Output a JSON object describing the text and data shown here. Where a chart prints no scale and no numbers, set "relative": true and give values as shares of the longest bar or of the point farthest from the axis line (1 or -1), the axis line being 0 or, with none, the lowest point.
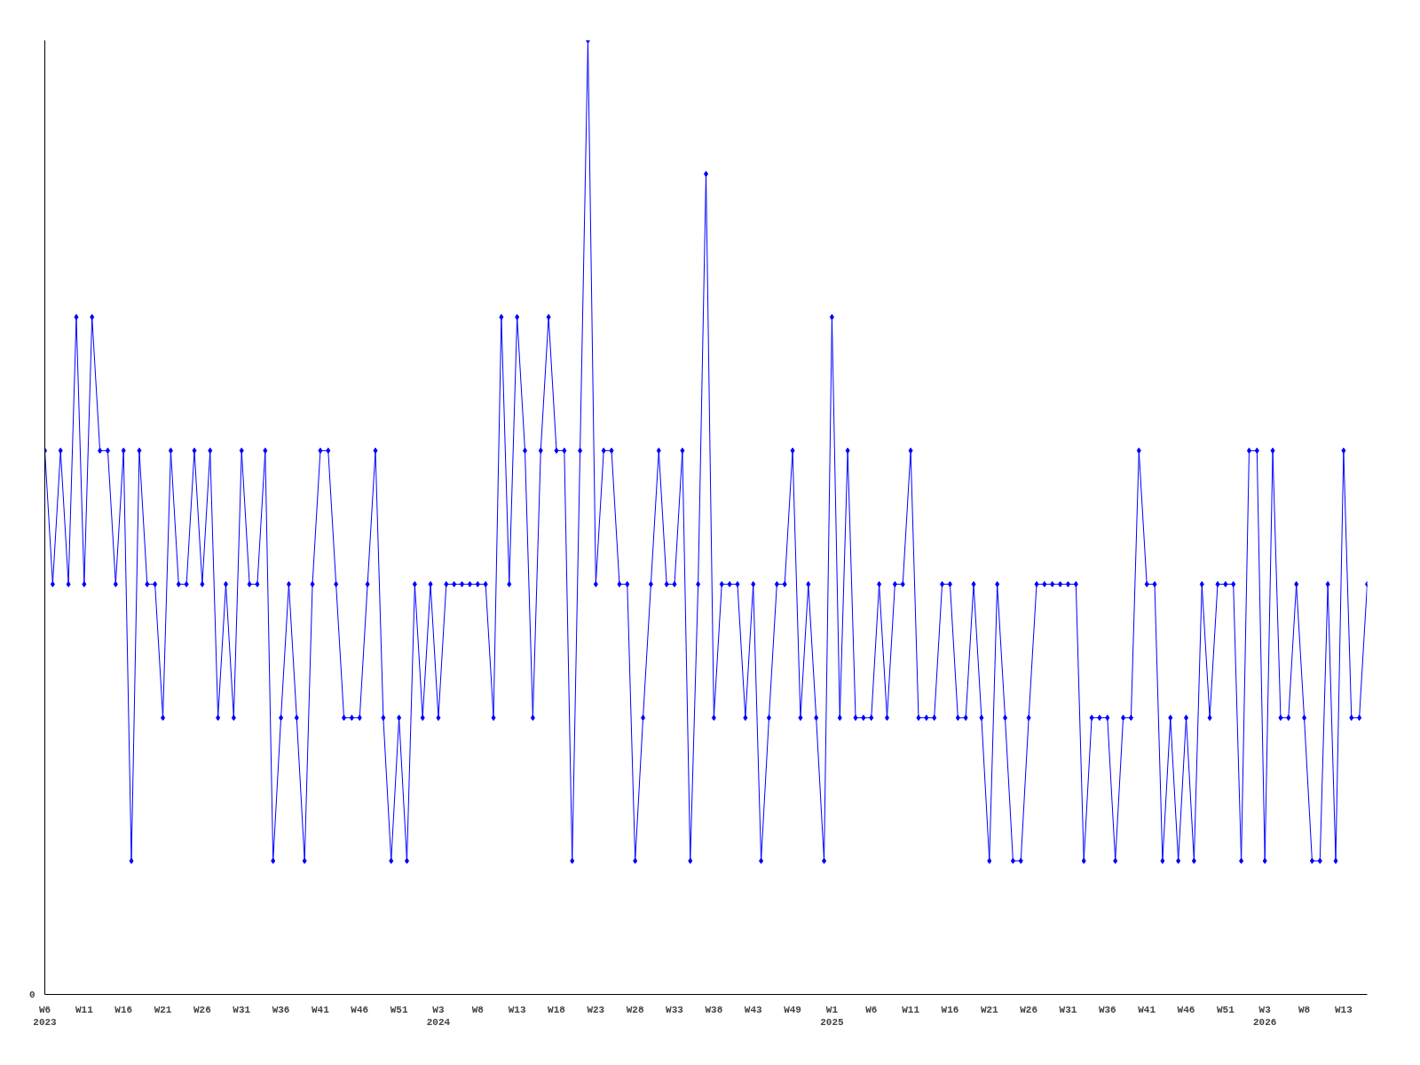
{
  "chart_data": {
    "type": "line",
    "relative": true,
    "marker": "diamond",
    "line_style": "solid",
    "grid": false,
    "annotations": [
      "0"
    ],
    "categories": [
      "W6\n2023",
      null,
      null,
      null,
      null,
      "W11",
      null,
      null,
      null,
      null,
      "W16",
      null,
      null,
      null,
      null,
      "W21",
      null,
      null,
      null,
      null,
      "W26",
      null,
      null,
      null,
      null,
      "W31",
      null,
      null,
      null,
      null,
      "W36",
      null,
      null,
      null,
      null,
      "W41",
      null,
      null,
      null,
      null,
      "W46",
      null,
      null,
      null,
      null,
      "W51",
      null,
      null,
      null,
      null,
      "W3\n2024",
      null,
      null,
      null,
      null,
      "W8",
      null,
      null,
      null,
      null,
      "W13",
      null,
      null,
      null,
      null,
      "W18",
      null,
      null,
      null,
      null,
      "W23",
      null,
      null,
      null,
      null,
      "W28",
      null,
      null,
      null,
      null,
      "W33",
      null,
      null,
      null,
      null,
      "W38",
      null,
      null,
      null,
      null,
      "W43",
      null,
      null,
      null,
      null,
      "W49",
      null,
      null,
      null,
      null,
      "W1\n2025",
      null,
      null,
      null,
      null,
      "W6",
      null,
      null,
      null,
      null,
      "W11",
      null,
      null,
      null,
      null,
      "W16",
      null,
      null,
      null,
      null,
      "W21",
      null,
      null,
      null,
      null,
      "W26",
      null,
      null,
      null,
      null,
      "W31",
      null,
      null,
      null,
      null,
      "W36",
      null,
      null,
      null,
      null,
      "W41",
      null,
      null,
      null,
      null,
      "W46",
      null,
      null,
      null,
      null,
      "W51",
      null,
      null,
      null,
      null,
      "W3\n2026",
      null,
      null,
      null,
      null,
      "W8",
      null,
      null,
      null,
      null,
      "W13",
      null,
      null,
      null
    ],
    "series": [
      {
        "color": "#0000ff",
        "values": [
          0.57,
          0.43,
          0.57,
          0.43,
          0.71,
          0.43,
          0.71,
          0.57,
          0.57,
          0.43,
          0.57,
          0.14,
          0.57,
          0.43,
          0.43,
          0.29,
          0.57,
          0.43,
          0.43,
          0.57,
          0.43,
          0.57,
          0.29,
          0.43,
          0.29,
          0.57,
          0.43,
          0.43,
          0.57,
          0.14,
          0.29,
          0.43,
          0.29,
          0.14,
          0.43,
          0.57,
          0.57,
          0.43,
          0.29,
          0.29,
          0.29,
          0.43,
          0.57,
          0.29,
          0.14,
          0.29,
          0.14,
          0.43,
          0.29,
          0.43,
          0.29,
          0.43,
          0.43,
          0.43,
          0.43,
          0.43,
          0.43,
          0.29,
          0.71,
          0.43,
          0.71,
          0.57,
          0.29,
          0.57,
          0.71,
          0.57,
          0.57,
          0.14,
          0.57,
          1,
          0.43,
          0.57,
          0.57,
          0.43,
          0.43,
          0.14,
          0.29,
          0.43,
          0.57,
          0.43,
          0.43,
          0.57,
          0.14,
          0.43,
          0.86,
          0.29,
          0.43,
          0.43,
          0.43,
          0.29,
          0.43,
          0.14,
          0.29,
          0.43,
          0.43,
          0.57,
          0.29,
          0.43,
          0.29,
          0.14,
          0.71,
          0.29,
          0.57,
          0.29,
          0.29,
          0.29,
          0.43,
          0.29,
          0.43,
          0.43,
          0.57,
          0.29,
          0.29,
          0.29,
          0.43,
          0.43,
          0.29,
          0.29,
          0.43,
          0.29,
          0.14,
          0.43,
          0.29,
          0.14,
          0.14,
          0.29,
          0.43,
          0.43,
          0.43,
          0.43,
          0.43,
          0.43,
          0.14,
          0.29,
          0.29,
          0.29,
          0.14,
          0.29,
          0.29,
          0.57,
          0.43,
          0.43,
          0.14,
          0.29,
          0.14,
          0.29,
          0.14,
          0.43,
          0.29,
          0.43,
          0.43,
          0.43,
          0.14,
          0.57,
          0.57,
          0.14,
          0.57,
          0.29,
          0.29,
          0.43,
          0.29,
          0.14,
          0.14,
          0.43,
          0.14,
          0.57,
          0.29,
          0.29,
          0.43
        ]
      }
    ]
  }
}
